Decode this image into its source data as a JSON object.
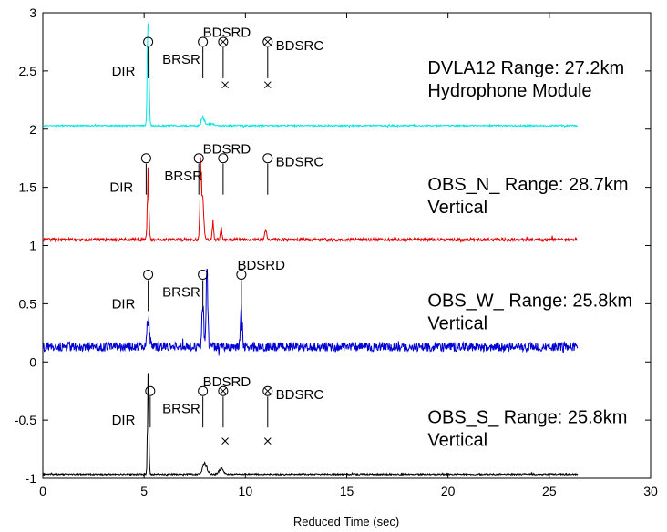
{
  "chart_data": {
    "type": "line",
    "title": "",
    "xlabel": "Reduced Time (sec)",
    "ylabel": "",
    "xlim": [
      0,
      30
    ],
    "ylim": [
      -1,
      3
    ],
    "x_ticks": [
      0,
      5,
      10,
      15,
      20,
      25,
      30
    ],
    "y_ticks": [
      -1,
      -0.5,
      0,
      0.5,
      1,
      1.5,
      2,
      2.5,
      3
    ],
    "x_tick_labels": [
      "0",
      "5",
      "10",
      "15",
      "20",
      "25",
      "30"
    ],
    "y_tick_labels": [
      "-1",
      "-0.5",
      "0",
      "0.5",
      "1",
      "1.5",
      "2",
      "2.5",
      "3"
    ],
    "grid": false,
    "legend": "none",
    "series": [
      {
        "color": "#00e5e5",
        "baseline": 2.03,
        "noise": 0.006,
        "x_end": 26.4,
        "peaks": [
          [
            5.2,
            1.3,
            0.06
          ],
          [
            7.9,
            0.09,
            0.12
          ],
          [
            8.3,
            0.02,
            0.2
          ]
        ],
        "annotation_lines": [
          "DVLA12 Range: 27.2km",
          "Hydrophone Module"
        ],
        "annotation_pos": [
          19.0,
          2.53
        ],
        "phases": [
          {
            "label": "DIR",
            "x": 5.2,
            "y": 2.75,
            "marker": "circle",
            "label_x": 3.4,
            "label_y": 2.5
          },
          {
            "label": "BRSR",
            "x": 7.9,
            "y": 2.75,
            "marker": "circle",
            "label_x": 5.9,
            "label_y": 2.6
          },
          {
            "label": "BDSRD",
            "x": 8.9,
            "y": 2.75,
            "marker": "circle-x",
            "label_x": 7.9,
            "label_y": 2.83
          },
          {
            "label": "BDSRC",
            "x": 11.1,
            "y": 2.75,
            "marker": "circle-x",
            "label_x": 11.5,
            "label_y": 2.72
          }
        ],
        "x_markers": [
          [
            9.0,
            2.38
          ],
          [
            11.1,
            2.38
          ]
        ]
      },
      {
        "color": "#e00000",
        "baseline": 1.05,
        "noise": 0.012,
        "x_end": 26.4,
        "peaks": [
          [
            5.2,
            0.68,
            0.06
          ],
          [
            7.8,
            0.7,
            0.06
          ],
          [
            7.9,
            0.35,
            0.08
          ],
          [
            8.4,
            0.2,
            0.05
          ],
          [
            8.8,
            0.15,
            0.05
          ],
          [
            11.0,
            0.12,
            0.06
          ]
        ],
        "annotation_lines": [
          "OBS_N_ Range: 28.7km",
          "Vertical"
        ],
        "annotation_pos": [
          19.0,
          1.53
        ],
        "phases": [
          {
            "label": "DIR",
            "x": 5.1,
            "y": 1.75,
            "marker": "circle",
            "label_x": 3.3,
            "label_y": 1.5
          },
          {
            "label": "BRSR",
            "x": 7.7,
            "y": 1.75,
            "marker": "circle",
            "label_x": 6.0,
            "label_y": 1.6
          },
          {
            "label": "BDSRD",
            "x": 8.9,
            "y": 1.75,
            "marker": "circle",
            "label_x": 7.9,
            "label_y": 1.83
          },
          {
            "label": "BDSRC",
            "x": 11.1,
            "y": 1.75,
            "marker": "circle",
            "label_x": 11.5,
            "label_y": 1.72
          }
        ],
        "x_markers": []
      },
      {
        "color": "#0000d0",
        "baseline": 0.13,
        "noise": 0.04,
        "x_end": 26.4,
        "peaks": [
          [
            5.2,
            0.3,
            0.1
          ],
          [
            7.9,
            0.6,
            0.06
          ],
          [
            8.1,
            0.85,
            0.06
          ],
          [
            9.8,
            0.42,
            0.06
          ]
        ],
        "annotation_lines": [
          "OBS_W_ Range: 25.8km",
          "Vertical"
        ],
        "annotation_pos": [
          19.0,
          0.53
        ],
        "phases": [
          {
            "label": "DIR",
            "x": 5.2,
            "y": 0.75,
            "marker": "circle",
            "label_x": 3.4,
            "label_y": 0.5
          },
          {
            "label": "BRSR",
            "x": 7.9,
            "y": 0.75,
            "marker": "circle",
            "label_x": 5.9,
            "label_y": 0.6
          },
          {
            "label": "BDSRD",
            "x": 9.8,
            "y": 0.75,
            "marker": "circle",
            "label_x": 9.6,
            "label_y": 0.83
          }
        ],
        "x_markers": []
      },
      {
        "color": "#000000",
        "baseline": -0.965,
        "noise": 0.006,
        "x_end": 26.4,
        "peaks": [
          [
            5.2,
            0.97,
            0.05
          ],
          [
            8.0,
            0.12,
            0.15
          ],
          [
            8.8,
            0.06,
            0.15
          ]
        ],
        "annotation_lines": [
          "OBS_S_ Range: 25.8km",
          "Vertical"
        ],
        "annotation_pos": [
          19.0,
          -0.47
        ],
        "phases": [
          {
            "label": "DIR",
            "x": 5.3,
            "y": -0.25,
            "marker": "circle",
            "label_x": 3.4,
            "label_y": -0.5
          },
          {
            "label": "BRSR",
            "x": 7.9,
            "y": -0.25,
            "marker": "circle",
            "label_x": 5.9,
            "label_y": -0.4
          },
          {
            "label": "BDSRD",
            "x": 8.9,
            "y": -0.25,
            "marker": "circle-x",
            "label_x": 7.9,
            "label_y": -0.17
          },
          {
            "label": "BDSRC",
            "x": 11.1,
            "y": -0.25,
            "marker": "circle-x",
            "label_x": 11.5,
            "label_y": -0.28
          }
        ],
        "x_markers": [
          [
            9.0,
            -0.68
          ],
          [
            11.1,
            -0.68
          ]
        ]
      }
    ]
  }
}
